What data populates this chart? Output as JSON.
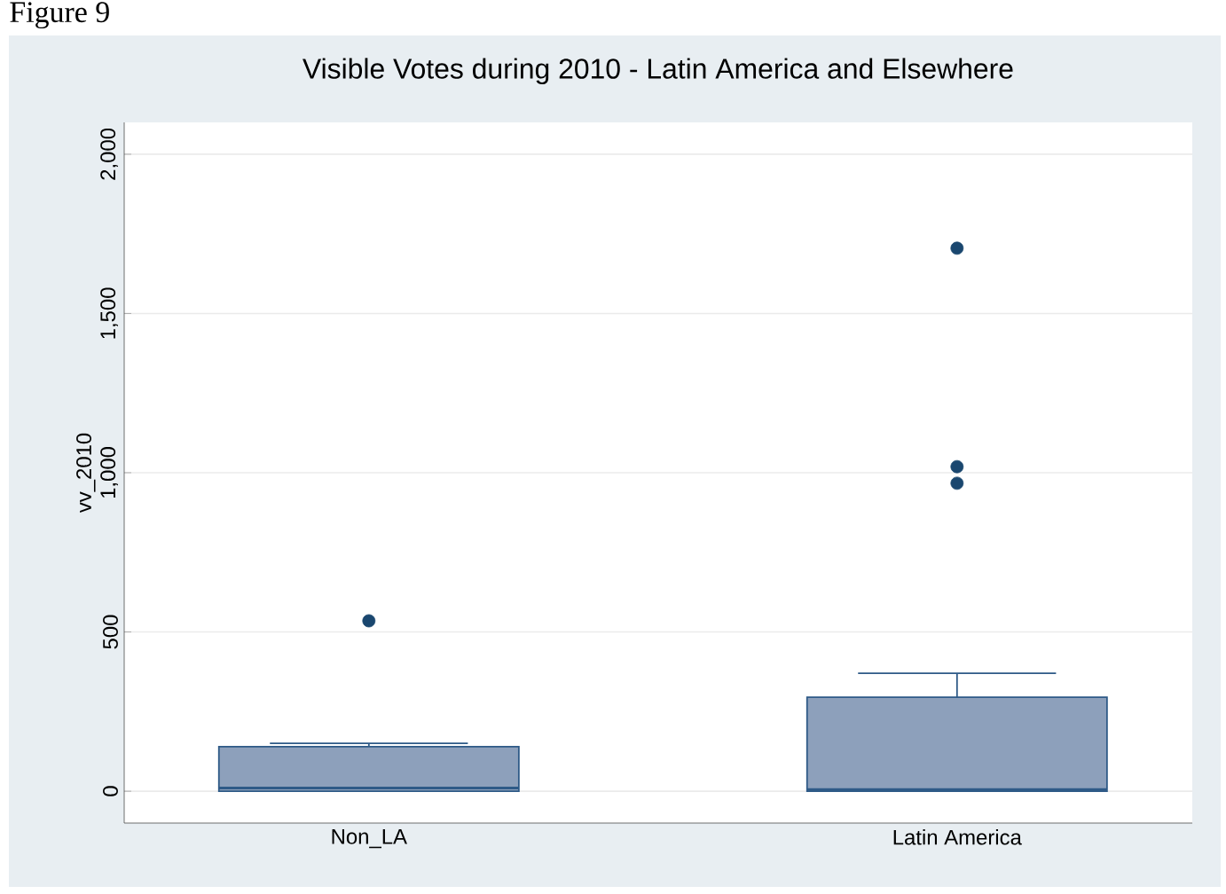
{
  "chart_data": {
    "type": "box",
    "title": "Visible Votes during 2010 - Latin America and Elsewhere",
    "ylabel": "vv_2010",
    "categories": [
      "Non_LA",
      "Latin America"
    ],
    "boxes": [
      {
        "q1": 0,
        "median": 10,
        "q3": 140,
        "high": 150,
        "outliers": [
          535
        ]
      },
      {
        "q1": 0,
        "median": 5,
        "q3": 295,
        "high": 370,
        "outliers": [
          1705,
          1019,
          967
        ]
      }
    ],
    "color": "#8da0bb",
    "ylim": [
      -100,
      2100
    ],
    "yticks": [
      {
        "value": 0,
        "label": "0"
      },
      {
        "value": 500,
        "label": "500"
      },
      {
        "value": 1000,
        "label": "1,000"
      },
      {
        "value": 1500,
        "label": "1,500"
      },
      {
        "value": 2000,
        "label": "2,000"
      }
    ],
    "grid": "y",
    "annotations": [
      "Figure 9"
    ]
  }
}
